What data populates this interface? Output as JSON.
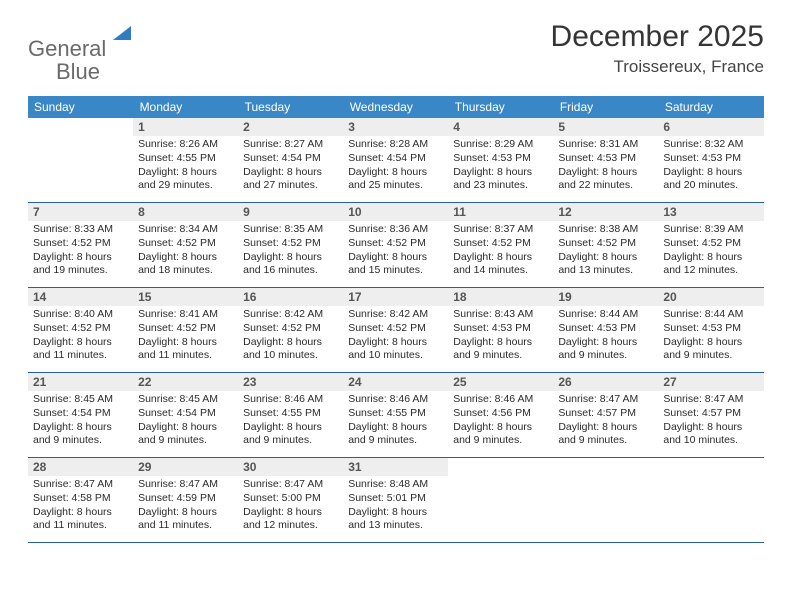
{
  "logo": {
    "word1": "General",
    "word2": "Blue"
  },
  "header": {
    "title": "December 2025",
    "location": "Troissereux, France"
  },
  "colors": {
    "header_bg": "#3a87c7",
    "row_border": "#2760a0",
    "daynum_bg": "#eeeeee",
    "logo_gray": "#6a6a6a",
    "logo_blue": "#2f7dc0"
  },
  "weekdays": [
    "Sunday",
    "Monday",
    "Tuesday",
    "Wednesday",
    "Thursday",
    "Friday",
    "Saturday"
  ],
  "weeks": [
    [
      {
        "day": "",
        "sunrise": "",
        "sunset": "",
        "daylight": ""
      },
      {
        "day": "1",
        "sunrise": "Sunrise: 8:26 AM",
        "sunset": "Sunset: 4:55 PM",
        "daylight": "Daylight: 8 hours and 29 minutes."
      },
      {
        "day": "2",
        "sunrise": "Sunrise: 8:27 AM",
        "sunset": "Sunset: 4:54 PM",
        "daylight": "Daylight: 8 hours and 27 minutes."
      },
      {
        "day": "3",
        "sunrise": "Sunrise: 8:28 AM",
        "sunset": "Sunset: 4:54 PM",
        "daylight": "Daylight: 8 hours and 25 minutes."
      },
      {
        "day": "4",
        "sunrise": "Sunrise: 8:29 AM",
        "sunset": "Sunset: 4:53 PM",
        "daylight": "Daylight: 8 hours and 23 minutes."
      },
      {
        "day": "5",
        "sunrise": "Sunrise: 8:31 AM",
        "sunset": "Sunset: 4:53 PM",
        "daylight": "Daylight: 8 hours and 22 minutes."
      },
      {
        "day": "6",
        "sunrise": "Sunrise: 8:32 AM",
        "sunset": "Sunset: 4:53 PM",
        "daylight": "Daylight: 8 hours and 20 minutes."
      }
    ],
    [
      {
        "day": "7",
        "sunrise": "Sunrise: 8:33 AM",
        "sunset": "Sunset: 4:52 PM",
        "daylight": "Daylight: 8 hours and 19 minutes."
      },
      {
        "day": "8",
        "sunrise": "Sunrise: 8:34 AM",
        "sunset": "Sunset: 4:52 PM",
        "daylight": "Daylight: 8 hours and 18 minutes."
      },
      {
        "day": "9",
        "sunrise": "Sunrise: 8:35 AM",
        "sunset": "Sunset: 4:52 PM",
        "daylight": "Daylight: 8 hours and 16 minutes."
      },
      {
        "day": "10",
        "sunrise": "Sunrise: 8:36 AM",
        "sunset": "Sunset: 4:52 PM",
        "daylight": "Daylight: 8 hours and 15 minutes."
      },
      {
        "day": "11",
        "sunrise": "Sunrise: 8:37 AM",
        "sunset": "Sunset: 4:52 PM",
        "daylight": "Daylight: 8 hours and 14 minutes."
      },
      {
        "day": "12",
        "sunrise": "Sunrise: 8:38 AM",
        "sunset": "Sunset: 4:52 PM",
        "daylight": "Daylight: 8 hours and 13 minutes."
      },
      {
        "day": "13",
        "sunrise": "Sunrise: 8:39 AM",
        "sunset": "Sunset: 4:52 PM",
        "daylight": "Daylight: 8 hours and 12 minutes."
      }
    ],
    [
      {
        "day": "14",
        "sunrise": "Sunrise: 8:40 AM",
        "sunset": "Sunset: 4:52 PM",
        "daylight": "Daylight: 8 hours and 11 minutes."
      },
      {
        "day": "15",
        "sunrise": "Sunrise: 8:41 AM",
        "sunset": "Sunset: 4:52 PM",
        "daylight": "Daylight: 8 hours and 11 minutes."
      },
      {
        "day": "16",
        "sunrise": "Sunrise: 8:42 AM",
        "sunset": "Sunset: 4:52 PM",
        "daylight": "Daylight: 8 hours and 10 minutes."
      },
      {
        "day": "17",
        "sunrise": "Sunrise: 8:42 AM",
        "sunset": "Sunset: 4:52 PM",
        "daylight": "Daylight: 8 hours and 10 minutes."
      },
      {
        "day": "18",
        "sunrise": "Sunrise: 8:43 AM",
        "sunset": "Sunset: 4:53 PM",
        "daylight": "Daylight: 8 hours and 9 minutes."
      },
      {
        "day": "19",
        "sunrise": "Sunrise: 8:44 AM",
        "sunset": "Sunset: 4:53 PM",
        "daylight": "Daylight: 8 hours and 9 minutes."
      },
      {
        "day": "20",
        "sunrise": "Sunrise: 8:44 AM",
        "sunset": "Sunset: 4:53 PM",
        "daylight": "Daylight: 8 hours and 9 minutes."
      }
    ],
    [
      {
        "day": "21",
        "sunrise": "Sunrise: 8:45 AM",
        "sunset": "Sunset: 4:54 PM",
        "daylight": "Daylight: 8 hours and 9 minutes."
      },
      {
        "day": "22",
        "sunrise": "Sunrise: 8:45 AM",
        "sunset": "Sunset: 4:54 PM",
        "daylight": "Daylight: 8 hours and 9 minutes."
      },
      {
        "day": "23",
        "sunrise": "Sunrise: 8:46 AM",
        "sunset": "Sunset: 4:55 PM",
        "daylight": "Daylight: 8 hours and 9 minutes."
      },
      {
        "day": "24",
        "sunrise": "Sunrise: 8:46 AM",
        "sunset": "Sunset: 4:55 PM",
        "daylight": "Daylight: 8 hours and 9 minutes."
      },
      {
        "day": "25",
        "sunrise": "Sunrise: 8:46 AM",
        "sunset": "Sunset: 4:56 PM",
        "daylight": "Daylight: 8 hours and 9 minutes."
      },
      {
        "day": "26",
        "sunrise": "Sunrise: 8:47 AM",
        "sunset": "Sunset: 4:57 PM",
        "daylight": "Daylight: 8 hours and 9 minutes."
      },
      {
        "day": "27",
        "sunrise": "Sunrise: 8:47 AM",
        "sunset": "Sunset: 4:57 PM",
        "daylight": "Daylight: 8 hours and 10 minutes."
      }
    ],
    [
      {
        "day": "28",
        "sunrise": "Sunrise: 8:47 AM",
        "sunset": "Sunset: 4:58 PM",
        "daylight": "Daylight: 8 hours and 11 minutes."
      },
      {
        "day": "29",
        "sunrise": "Sunrise: 8:47 AM",
        "sunset": "Sunset: 4:59 PM",
        "daylight": "Daylight: 8 hours and 11 minutes."
      },
      {
        "day": "30",
        "sunrise": "Sunrise: 8:47 AM",
        "sunset": "Sunset: 5:00 PM",
        "daylight": "Daylight: 8 hours and 12 minutes."
      },
      {
        "day": "31",
        "sunrise": "Sunrise: 8:48 AM",
        "sunset": "Sunset: 5:01 PM",
        "daylight": "Daylight: 8 hours and 13 minutes."
      },
      {
        "day": "",
        "sunrise": "",
        "sunset": "",
        "daylight": ""
      },
      {
        "day": "",
        "sunrise": "",
        "sunset": "",
        "daylight": ""
      },
      {
        "day": "",
        "sunrise": "",
        "sunset": "",
        "daylight": ""
      }
    ]
  ]
}
